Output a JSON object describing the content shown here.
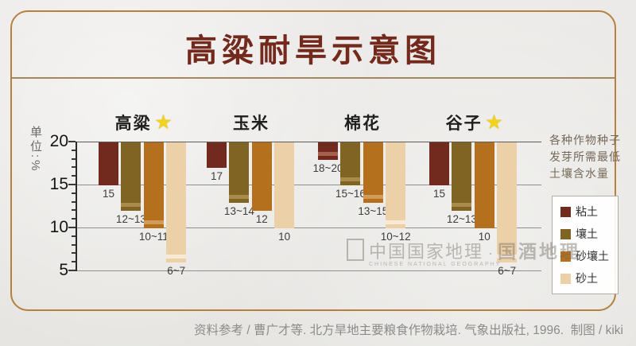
{
  "title": "高粱耐旱示意图",
  "title_color": "#73291c",
  "frame_border_color": "#b5813f",
  "star_glyph": "★",
  "star_color": "#f2d21a",
  "annotation": {
    "lines": [
      "各种作物种子",
      "发芽所需最低",
      "土壤含水量"
    ]
  },
  "watermark": {
    "part1": "中国国家地理",
    "separator": "·",
    "part2": "国酒地理",
    "subtext": "CHINESE NATIONAL GEOGRAPHY"
  },
  "caption": "资料参考 / 曹广才等. 北方旱地主要粮食作物栽培. 气象出版社, 1996.  制图 / kiki",
  "chart_data": {
    "type": "bar",
    "orientation": "hanging-from-baseline",
    "title": "高粱耐旱示意图",
    "ylabel": "单位:%",
    "unit": "%",
    "baseline": 20,
    "ylim": [
      5,
      20
    ],
    "yticks": [
      20,
      15,
      10,
      5
    ],
    "grid": true,
    "legend_position": "right",
    "note": "各种作物种子发芽所需最低土壤含水量",
    "soils": [
      {
        "name": "粘土",
        "color": "#722a1e",
        "stripe_color": "#a5614e"
      },
      {
        "name": "壤土",
        "color": "#7f6423",
        "stripe_color": "#a98c4c"
      },
      {
        "name": "砂壤土",
        "color": "#b4701d",
        "stripe_color": "#d09c57"
      },
      {
        "name": "砂土",
        "color": "#ecd0a8",
        "stripe_color": "#f8ead3"
      }
    ],
    "categories": [
      "高粱",
      "玉米",
      "棉花",
      "谷子"
    ],
    "groups": [
      {
        "category": "高粱",
        "starred": true,
        "bars": [
          {
            "soil": "粘土",
            "min": 15,
            "max": 15,
            "label": "15"
          },
          {
            "soil": "壤土",
            "min": 12,
            "max": 13,
            "label": "12~13"
          },
          {
            "soil": "砂壤土",
            "min": 10,
            "max": 11,
            "label": "10~11"
          },
          {
            "soil": "砂土",
            "min": 6,
            "max": 7,
            "label": "6~7"
          }
        ]
      },
      {
        "category": "玉米",
        "starred": false,
        "bars": [
          {
            "soil": "粘土",
            "min": 17,
            "max": 17,
            "label": "17"
          },
          {
            "soil": "壤土",
            "min": 13,
            "max": 14,
            "label": "13~14"
          },
          {
            "soil": "砂壤土",
            "min": 12,
            "max": 12,
            "label": "12"
          },
          {
            "soil": "砂土",
            "min": 10,
            "max": 10,
            "label": "10"
          }
        ]
      },
      {
        "category": "棉花",
        "starred": false,
        "bars": [
          {
            "soil": "粘土",
            "min": 18,
            "max": 20,
            "label": "18~20"
          },
          {
            "soil": "壤土",
            "min": 15,
            "max": 16,
            "label": "15~16"
          },
          {
            "soil": "砂壤土",
            "min": 13,
            "max": 15,
            "label": "13~15"
          },
          {
            "soil": "砂土",
            "min": 10,
            "max": 12,
            "label": "10~12"
          }
        ]
      },
      {
        "category": "谷子",
        "starred": true,
        "bars": [
          {
            "soil": "粘土",
            "min": 15,
            "max": 15,
            "label": "15"
          },
          {
            "soil": "壤土",
            "min": 12,
            "max": 13,
            "label": "12~13"
          },
          {
            "soil": "砂壤土",
            "min": 10,
            "max": 10,
            "label": "10"
          },
          {
            "soil": "砂土",
            "min": 6,
            "max": 7,
            "label": "6~7"
          }
        ]
      }
    ]
  }
}
